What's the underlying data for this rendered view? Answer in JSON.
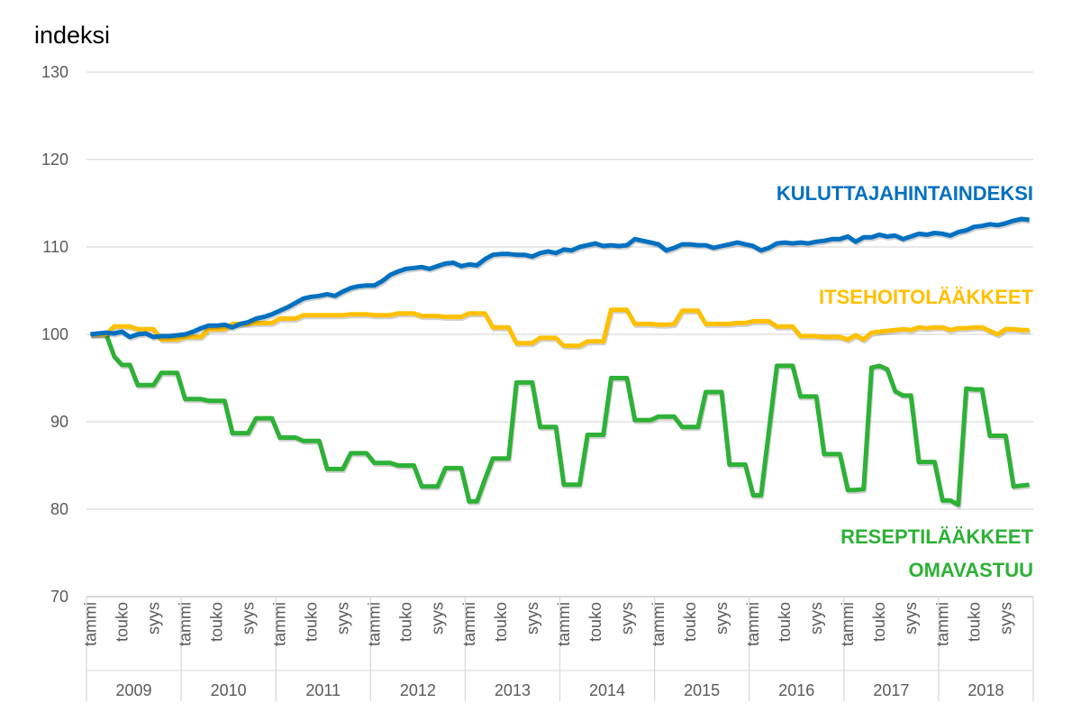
{
  "chart_data": {
    "type": "line",
    "title": "",
    "ylabel": "indeksi",
    "xlabel": "",
    "ylim": [
      70,
      130
    ],
    "yticks": [
      70,
      80,
      90,
      100,
      110,
      120,
      130
    ],
    "grid": true,
    "years": [
      "2009",
      "2010",
      "2011",
      "2012",
      "2013",
      "2014",
      "2015",
      "2016",
      "2017",
      "2018"
    ],
    "month_tick_labels": [
      {
        "month": 0,
        "label": "tammi"
      },
      {
        "month": 4,
        "label": "touko"
      },
      {
        "month": 8,
        "label": "syys"
      }
    ],
    "series": [
      {
        "name": "KULUTTAJAHINTAINDEKSI",
        "color": "#0070C0",
        "values": [
          100,
          100.1,
          100.2,
          100.1,
          100.3,
          99.7,
          100,
          100.1,
          99.7,
          99.8,
          99.8,
          99.9,
          100,
          100.3,
          100.7,
          101,
          101,
          101.1,
          100.8,
          101.2,
          101.4,
          101.8,
          102,
          102.3,
          102.7,
          103.1,
          103.6,
          104.1,
          104.3,
          104.4,
          104.6,
          104.4,
          104.9,
          105.3,
          105.5,
          105.6,
          105.6,
          106.1,
          106.8,
          107.2,
          107.5,
          107.6,
          107.7,
          107.5,
          107.8,
          108.1,
          108.2,
          107.8,
          108,
          107.9,
          108.6,
          109.1,
          109.2,
          109.2,
          109.1,
          109.1,
          108.9,
          109.3,
          109.5,
          109.3,
          109.7,
          109.6,
          110,
          110.2,
          110.4,
          110.1,
          110.2,
          110.1,
          110.2,
          110.9,
          110.7,
          110.5,
          110.3,
          109.6,
          109.9,
          110.3,
          110.3,
          110.2,
          110.2,
          109.9,
          110.1,
          110.3,
          110.5,
          110.3,
          110.1,
          109.6,
          109.9,
          110.4,
          110.5,
          110.4,
          110.5,
          110.4,
          110.6,
          110.7,
          110.9,
          110.9,
          111.2,
          110.6,
          111.1,
          111.1,
          111.4,
          111.2,
          111.3,
          110.9,
          111.2,
          111.5,
          111.4,
          111.6,
          111.5,
          111.3,
          111.7,
          111.9,
          112.3,
          112.4,
          112.6,
          112.5,
          112.7,
          113,
          113.2,
          113.1
        ]
      },
      {
        "name": "ITSEHOITOLÄÄKKEET",
        "color": "#FFC000",
        "values": [
          100,
          100,
          100,
          100.9,
          100.9,
          100.9,
          100.6,
          100.6,
          100.6,
          99.4,
          99.4,
          99.4,
          99.7,
          99.7,
          99.7,
          100.6,
          100.6,
          100.6,
          101.2,
          101.2,
          101.2,
          101.3,
          101.3,
          101.3,
          101.8,
          101.8,
          101.8,
          102.2,
          102.2,
          102.2,
          102.2,
          102.2,
          102.2,
          102.3,
          102.3,
          102.3,
          102.2,
          102.2,
          102.2,
          102.4,
          102.4,
          102.4,
          102.1,
          102.1,
          102.1,
          102,
          102,
          102,
          102.4,
          102.4,
          102.4,
          100.8,
          100.8,
          100.8,
          99,
          99,
          99,
          99.6,
          99.6,
          99.6,
          98.7,
          98.7,
          98.7,
          99.2,
          99.2,
          99.2,
          102.8,
          102.8,
          102.8,
          101.2,
          101.2,
          101.2,
          101.1,
          101.1,
          101.2,
          102.7,
          102.7,
          102.7,
          101.2,
          101.2,
          101.2,
          101.2,
          101.3,
          101.3,
          101.5,
          101.5,
          101.5,
          100.9,
          100.9,
          100.9,
          99.8,
          99.8,
          99.8,
          99.7,
          99.7,
          99.7,
          99.4,
          99.9,
          99.4,
          100.2,
          100.3,
          100.4,
          100.5,
          100.6,
          100.5,
          100.8,
          100.7,
          100.8,
          100.8,
          100.5,
          100.7,
          100.7,
          100.8,
          100.8,
          100.4,
          100,
          100.6,
          100.6,
          100.5,
          100.5
        ]
      },
      {
        "name": "RESEPTILÄÄKKEET OMAVASTUU",
        "label_lines": [
          "RESEPTILÄÄKKEET",
          "OMAVASTUU"
        ],
        "color": "#2DB136",
        "values": [
          100,
          100,
          100,
          97.5,
          96.5,
          96.5,
          94.2,
          94.2,
          94.2,
          95.6,
          95.6,
          95.6,
          92.6,
          92.6,
          92.6,
          92.4,
          92.4,
          92.4,
          88.7,
          88.7,
          88.7,
          90.4,
          90.4,
          90.4,
          88.2,
          88.2,
          88.2,
          87.8,
          87.8,
          87.8,
          84.6,
          84.6,
          84.6,
          86.4,
          86.4,
          86.4,
          85.3,
          85.3,
          85.3,
          85,
          85,
          85,
          82.6,
          82.6,
          82.6,
          84.7,
          84.7,
          84.7,
          80.9,
          80.9,
          83.4,
          85.8,
          85.8,
          85.8,
          94.5,
          94.5,
          94.5,
          89.4,
          89.4,
          89.4,
          82.8,
          82.8,
          82.8,
          88.5,
          88.5,
          88.5,
          95,
          95,
          95,
          90.2,
          90.2,
          90.2,
          90.6,
          90.6,
          90.6,
          89.4,
          89.4,
          89.4,
          93.4,
          93.4,
          93.4,
          85.1,
          85.1,
          85.1,
          81.6,
          81.6,
          89,
          96.4,
          96.4,
          96.4,
          92.9,
          92.9,
          92.9,
          86.3,
          86.3,
          86.3,
          82.2,
          82.2,
          82.3,
          96.2,
          96.4,
          96,
          93.5,
          93,
          93,
          85.4,
          85.4,
          85.4,
          81,
          81,
          80.5,
          93.8,
          93.7,
          93.7,
          88.4,
          88.4,
          88.4,
          82.6,
          82.7,
          82.8
        ]
      }
    ]
  }
}
